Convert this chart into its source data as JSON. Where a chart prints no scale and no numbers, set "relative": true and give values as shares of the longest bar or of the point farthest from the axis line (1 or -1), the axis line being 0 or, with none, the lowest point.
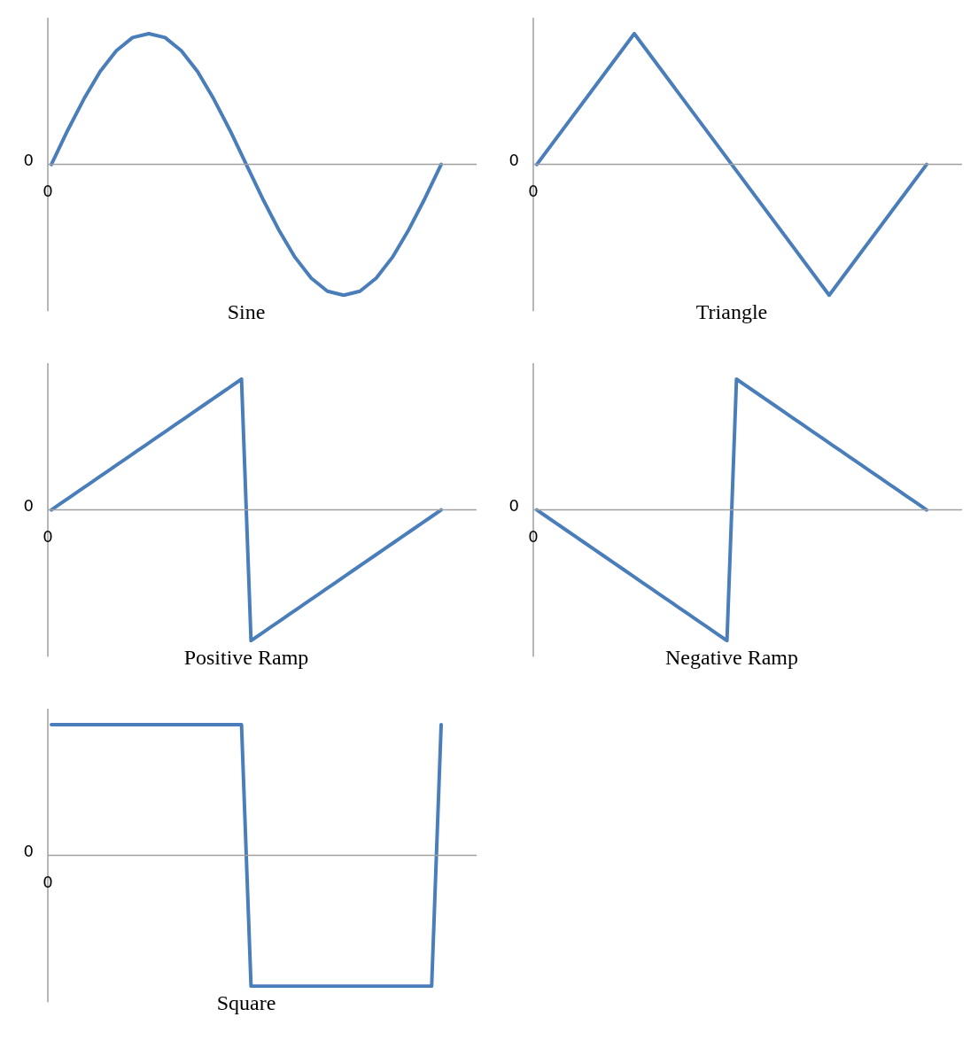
{
  "chart_data": [
    {
      "type": "line",
      "title": "Sine",
      "relative": true,
      "annotations": [
        "0",
        "0"
      ],
      "categories": [
        null,
        null,
        null,
        null,
        null,
        null,
        null,
        null,
        null,
        null,
        null,
        null,
        null,
        null,
        null,
        null,
        null,
        null,
        null,
        null,
        null,
        null,
        null,
        null,
        null
      ],
      "series": [
        {
          "color": "#4a7ebb",
          "values": [
            0,
            0.26,
            0.5,
            0.71,
            0.87,
            0.97,
            1,
            0.97,
            0.87,
            0.71,
            0.5,
            0.26,
            0,
            -0.26,
            -0.5,
            -0.71,
            -0.87,
            -0.97,
            -1,
            -0.97,
            -0.87,
            -0.71,
            -0.5,
            -0.26,
            0
          ]
        }
      ]
    },
    {
      "type": "line",
      "title": "Triangle",
      "relative": true,
      "annotations": [
        "0",
        "0"
      ],
      "categories": [
        null,
        null,
        null,
        null,
        null
      ],
      "series": [
        {
          "color": "#4a7ebb",
          "values": [
            0,
            1,
            0,
            -1,
            0
          ]
        }
      ]
    },
    {
      "type": "line",
      "title": "Positive Ramp",
      "relative": true,
      "annotations": [
        "0",
        "0"
      ],
      "categories": [
        null,
        null,
        null,
        null,
        null,
        null,
        null,
        null,
        null,
        null,
        null,
        null,
        null,
        null,
        null,
        null,
        null,
        null,
        null,
        null,
        null,
        null,
        null,
        null,
        null,
        null,
        null,
        null,
        null,
        null,
        null,
        null,
        null,
        null,
        null,
        null,
        null,
        null,
        null,
        null,
        null,
        null
      ],
      "series": [
        {
          "color": "#4a7ebb",
          "values": [
            0,
            0.05,
            0.1,
            0.15,
            0.2,
            0.25,
            0.3,
            0.35,
            0.4,
            0.45,
            0.5,
            0.55,
            0.6,
            0.65,
            0.7,
            0.75,
            0.8,
            0.85,
            0.9,
            0.95,
            1,
            -1,
            -0.95,
            -0.9,
            -0.85,
            -0.8,
            -0.75,
            -0.7,
            -0.65,
            -0.6,
            -0.55,
            -0.5,
            -0.45,
            -0.4,
            -0.35,
            -0.3,
            -0.25,
            -0.2,
            -0.15,
            -0.1,
            -0.05,
            0
          ]
        }
      ]
    },
    {
      "type": "line",
      "title": "Negative Ramp",
      "relative": true,
      "annotations": [
        "0",
        "0"
      ],
      "categories": [
        null,
        null,
        null,
        null,
        null,
        null,
        null,
        null,
        null,
        null,
        null,
        null,
        null,
        null,
        null,
        null,
        null,
        null,
        null,
        null,
        null,
        null,
        null,
        null,
        null,
        null,
        null,
        null,
        null,
        null,
        null,
        null,
        null,
        null,
        null,
        null,
        null,
        null,
        null,
        null,
        null,
        null
      ],
      "series": [
        {
          "color": "#4a7ebb",
          "values": [
            0,
            -0.05,
            -0.1,
            -0.15,
            -0.2,
            -0.25,
            -0.3,
            -0.35,
            -0.4,
            -0.45,
            -0.5,
            -0.55,
            -0.6,
            -0.65,
            -0.7,
            -0.75,
            -0.8,
            -0.85,
            -0.9,
            -0.95,
            -1,
            1,
            0.95,
            0.9,
            0.85,
            0.8,
            0.75,
            0.7,
            0.65,
            0.6,
            0.55,
            0.5,
            0.45,
            0.4,
            0.35,
            0.3,
            0.25,
            0.2,
            0.15,
            0.1,
            0.05,
            0
          ]
        }
      ]
    },
    {
      "type": "line",
      "title": "Square",
      "relative": true,
      "annotations": [
        "0",
        "0"
      ],
      "categories": [
        null,
        null,
        null,
        null,
        null,
        null,
        null,
        null,
        null,
        null,
        null,
        null,
        null,
        null,
        null,
        null,
        null,
        null,
        null,
        null,
        null,
        null,
        null,
        null,
        null,
        null,
        null,
        null,
        null,
        null,
        null,
        null,
        null,
        null,
        null,
        null,
        null,
        null,
        null,
        null,
        null,
        null
      ],
      "series": [
        {
          "color": "#4a7ebb",
          "values": [
            1,
            1,
            1,
            1,
            1,
            1,
            1,
            1,
            1,
            1,
            1,
            1,
            1,
            1,
            1,
            1,
            1,
            1,
            1,
            1,
            1,
            -1,
            -1,
            -1,
            -1,
            -1,
            -1,
            -1,
            -1,
            -1,
            -1,
            -1,
            -1,
            -1,
            -1,
            -1,
            -1,
            -1,
            -1,
            -1,
            -1,
            1
          ]
        }
      ]
    }
  ]
}
